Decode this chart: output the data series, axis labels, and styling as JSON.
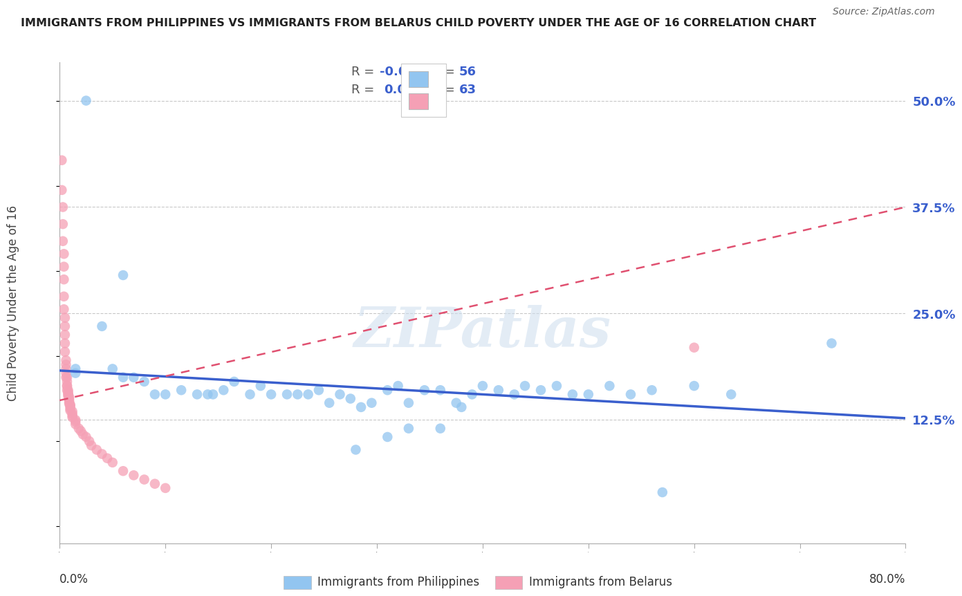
{
  "title": "IMMIGRANTS FROM PHILIPPINES VS IMMIGRANTS FROM BELARUS CHILD POVERTY UNDER THE AGE OF 16 CORRELATION CHART",
  "source": "Source: ZipAtlas.com",
  "ylabel": "Child Poverty Under the Age of 16",
  "ytick_positions": [
    0.125,
    0.25,
    0.375,
    0.5
  ],
  "ytick_labels": [
    "12.5%",
    "25.0%",
    "37.5%",
    "50.0%"
  ],
  "xlim": [
    0.0,
    0.8
  ],
  "ylim": [
    -0.02,
    0.545
  ],
  "legend_R_blue": "-0.071",
  "legend_N_blue": "56",
  "legend_R_pink": "0.051",
  "legend_N_pink": "63",
  "legend_label_blue": "Immigrants from Philippines",
  "legend_label_pink": "Immigrants from Belarus",
  "blue_color": "#92C5F0",
  "pink_color": "#F5A0B5",
  "blue_line_color": "#3A5FCD",
  "pink_line_color": "#E05070",
  "watermark": "ZIPatlas",
  "blue_scatter_x": [
    0.025,
    0.06,
    0.04,
    0.015,
    0.015,
    0.05,
    0.06,
    0.07,
    0.08,
    0.09,
    0.1,
    0.115,
    0.13,
    0.14,
    0.145,
    0.155,
    0.165,
    0.18,
    0.19,
    0.2,
    0.215,
    0.225,
    0.235,
    0.245,
    0.255,
    0.265,
    0.275,
    0.285,
    0.295,
    0.31,
    0.32,
    0.33,
    0.345,
    0.36,
    0.375,
    0.38,
    0.39,
    0.4,
    0.415,
    0.43,
    0.44,
    0.455,
    0.47,
    0.485,
    0.5,
    0.52,
    0.54,
    0.56,
    0.6,
    0.635,
    0.31,
    0.33,
    0.36,
    0.28,
    0.73,
    0.57
  ],
  "blue_scatter_y": [
    0.5,
    0.295,
    0.235,
    0.185,
    0.18,
    0.185,
    0.175,
    0.175,
    0.17,
    0.155,
    0.155,
    0.16,
    0.155,
    0.155,
    0.155,
    0.16,
    0.17,
    0.155,
    0.165,
    0.155,
    0.155,
    0.155,
    0.155,
    0.16,
    0.145,
    0.155,
    0.15,
    0.14,
    0.145,
    0.16,
    0.165,
    0.145,
    0.16,
    0.16,
    0.145,
    0.14,
    0.155,
    0.165,
    0.16,
    0.155,
    0.165,
    0.16,
    0.165,
    0.155,
    0.155,
    0.165,
    0.155,
    0.16,
    0.165,
    0.155,
    0.105,
    0.115,
    0.115,
    0.09,
    0.215,
    0.04
  ],
  "pink_scatter_x": [
    0.002,
    0.002,
    0.003,
    0.003,
    0.003,
    0.004,
    0.004,
    0.004,
    0.004,
    0.004,
    0.005,
    0.005,
    0.005,
    0.005,
    0.005,
    0.006,
    0.006,
    0.006,
    0.006,
    0.006,
    0.007,
    0.007,
    0.007,
    0.007,
    0.007,
    0.008,
    0.008,
    0.008,
    0.008,
    0.008,
    0.009,
    0.009,
    0.009,
    0.009,
    0.009,
    0.01,
    0.01,
    0.01,
    0.01,
    0.01,
    0.012,
    0.012,
    0.012,
    0.012,
    0.015,
    0.015,
    0.015,
    0.018,
    0.02,
    0.022,
    0.025,
    0.028,
    0.03,
    0.035,
    0.04,
    0.045,
    0.05,
    0.06,
    0.07,
    0.08,
    0.09,
    0.1,
    0.6
  ],
  "pink_scatter_y": [
    0.43,
    0.395,
    0.375,
    0.355,
    0.335,
    0.32,
    0.305,
    0.29,
    0.27,
    0.255,
    0.245,
    0.235,
    0.225,
    0.215,
    0.205,
    0.195,
    0.19,
    0.185,
    0.18,
    0.175,
    0.175,
    0.17,
    0.165,
    0.165,
    0.16,
    0.16,
    0.158,
    0.156,
    0.155,
    0.153,
    0.152,
    0.15,
    0.148,
    0.146,
    0.144,
    0.143,
    0.142,
    0.14,
    0.138,
    0.136,
    0.135,
    0.132,
    0.13,
    0.128,
    0.125,
    0.123,
    0.12,
    0.115,
    0.112,
    0.108,
    0.105,
    0.1,
    0.095,
    0.09,
    0.085,
    0.08,
    0.075,
    0.065,
    0.06,
    0.055,
    0.05,
    0.045,
    0.21
  ],
  "blue_trend_x0": 0.0,
  "blue_trend_x1": 0.8,
  "blue_trend_y0": 0.183,
  "blue_trend_y1": 0.127,
  "pink_trend_x0": 0.0,
  "pink_trend_x1": 0.8,
  "pink_trend_y0": 0.148,
  "pink_trend_y1": 0.375
}
